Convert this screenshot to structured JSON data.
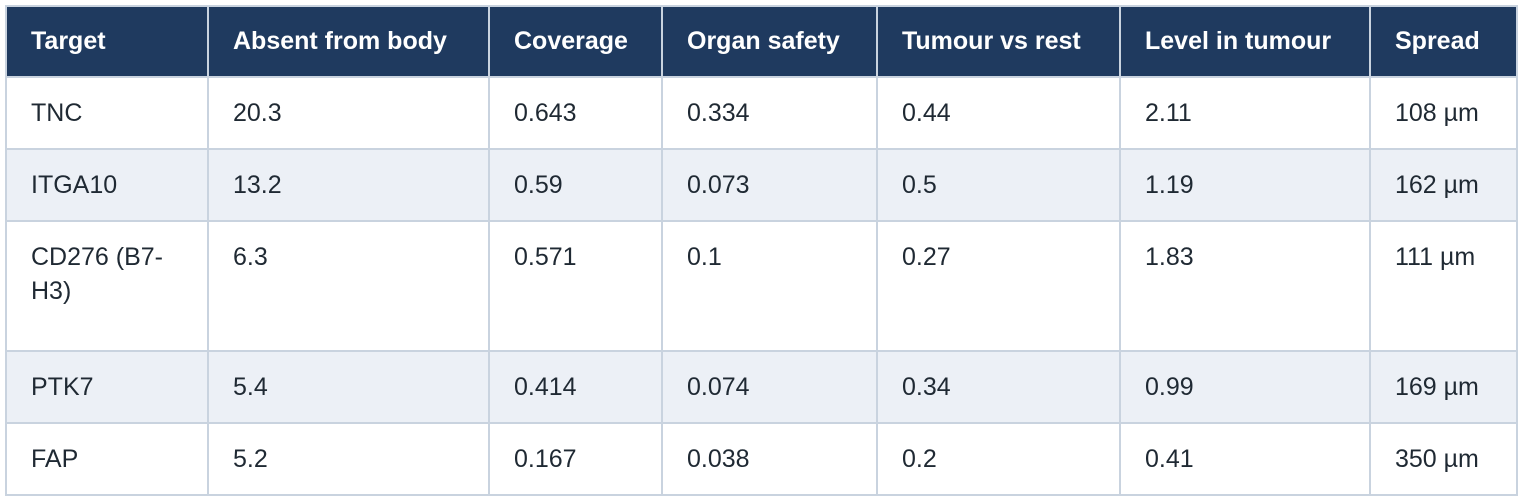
{
  "table": {
    "headers": [
      "Target",
      "Absent from body",
      "Coverage",
      "Organ safety",
      "Tumour vs rest",
      "Level in tumour",
      "Spread"
    ],
    "rows": [
      [
        "TNC",
        "20.3",
        "0.643",
        "0.334",
        "0.44",
        "2.11",
        "108 µm"
      ],
      [
        "ITGA10",
        "13.2",
        "0.59",
        "0.073",
        "0.5",
        "1.19",
        "162 µm"
      ],
      [
        "CD276 (B7-H3)",
        "6.3",
        "0.571",
        "0.1",
        "0.27",
        "1.83",
        "111 µm"
      ],
      [
        "PTK7",
        "5.4",
        "0.414",
        "0.074",
        "0.34",
        "0.99",
        "169 µm"
      ],
      [
        "FAP",
        "5.2",
        "0.167",
        "0.038",
        "0.2",
        "0.41",
        "350 µm"
      ]
    ]
  },
  "colors": {
    "header_bg": "#1f3a5f",
    "header_text": "#ffffff",
    "stripe_bg": "#ecf0f6",
    "border": "#c9d3df"
  }
}
